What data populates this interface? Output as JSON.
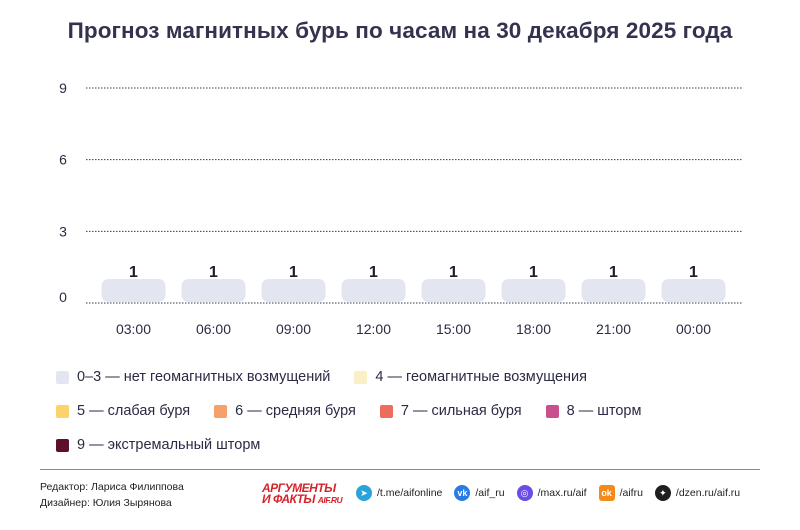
{
  "title": "Прогноз магнитных бурь по часам на 30 декабря 2025 года",
  "chart_data": {
    "type": "bar",
    "categories": [
      "03:00",
      "06:00",
      "09:00",
      "12:00",
      "15:00",
      "18:00",
      "21:00",
      "00:00"
    ],
    "values": [
      1,
      1,
      1,
      1,
      1,
      1,
      1,
      1
    ],
    "yticks": [
      0,
      3,
      6,
      9
    ],
    "ylim": [
      0,
      9
    ],
    "grid": true,
    "bar_color": "#e3e6f0"
  },
  "legend": [
    {
      "label": "0–3 — нет геомагнитных возмущений",
      "color": "#e3e6f0"
    },
    {
      "label": "4 — геомагнитные возмущения",
      "color": "#fbefc7"
    },
    {
      "label": "5 — слабая буря",
      "color": "#fbd36d"
    },
    {
      "label": "6 — средняя буря",
      "color": "#f6a16c"
    },
    {
      "label": "7 — сильная буря",
      "color": "#ee6c5c"
    },
    {
      "label": "8 — шторм",
      "color": "#c9508d"
    },
    {
      "label": "9 — экстремальный шторм",
      "color": "#5e0f2b"
    }
  ],
  "credits": {
    "editor": "Редактор: Лариса Филиппова",
    "designer": "Дизайнер: Юлия Зырянова"
  },
  "logo": {
    "line1": "АРГУМЕНТЫ",
    "line2": "И ФАКТЫ",
    "site": "AIF.RU"
  },
  "socials": [
    {
      "icon": "telegram-icon",
      "text": "/t.me/aifonline",
      "color": "#2aa3db"
    },
    {
      "icon": "vk-icon",
      "text": "/aif_ru",
      "color": "#2b7be5"
    },
    {
      "icon": "max-icon",
      "text": "/max.ru/aif",
      "color": "#6b4de6"
    },
    {
      "icon": "odnoklassniki-icon",
      "text": "/aifru",
      "color": "#f28b1c"
    },
    {
      "icon": "dzen-icon",
      "text": "/dzen.ru/aif.ru",
      "color": "#1e1e1e"
    }
  ]
}
